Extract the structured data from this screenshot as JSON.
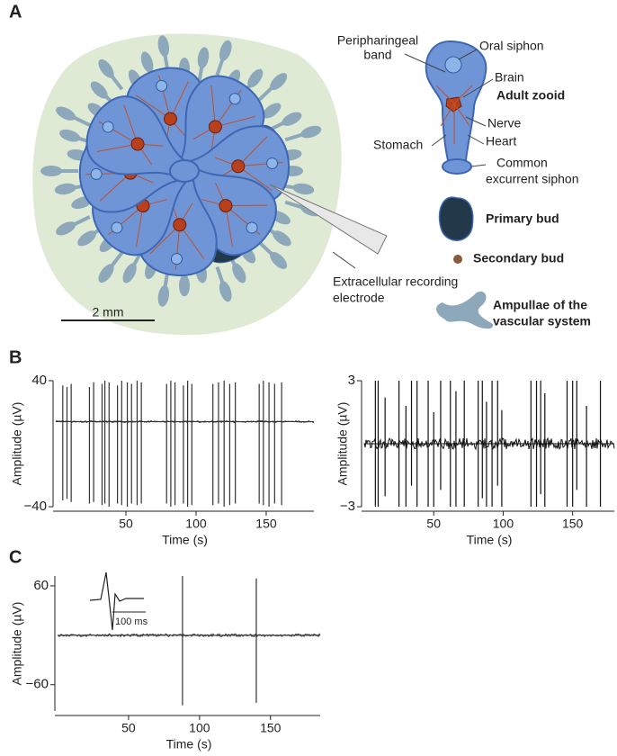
{
  "panel_labels": [
    "A",
    "B",
    "C"
  ],
  "colony": {
    "scale_bar": "2 mm",
    "electrode_label": [
      "Extracellular recording",
      "electrode"
    ]
  },
  "zooid_labels": {
    "peripharingeal_band": [
      "Peripharingeal",
      "band"
    ],
    "oral_siphon": "Oral siphon",
    "brain": "Brain",
    "adult_zooid": "Adult zooid",
    "nerve": "Nerve",
    "stomach": "Stomach",
    "heart": "Heart",
    "common_excurrent_siphon": [
      "Common",
      "excurrent siphon"
    ]
  },
  "legend": {
    "primary_bud": "Primary bud",
    "secondary_bud": "Secondary bud",
    "ampullae": [
      "Ampullae of the",
      "vascular system"
    ]
  },
  "chart_data": [
    {
      "type": "spikes",
      "x_label": "Time (s)",
      "y_label": "Amplitude (µV)",
      "xlim": [
        0,
        184
      ],
      "xticks": [
        50,
        100,
        150
      ],
      "ylim": [
        -40,
        40
      ],
      "yticks": [
        {
          "value": -40,
          "label": "−40"
        },
        40
      ],
      "baseline": 14,
      "color": "#333333",
      "x": [
        5,
        8,
        11,
        24,
        27,
        33,
        35,
        38,
        44,
        47,
        51,
        54,
        58,
        61,
        79,
        82,
        85,
        91,
        94,
        97,
        112,
        116,
        120,
        124,
        128,
        145,
        148,
        152,
        156,
        161
      ],
      "high": [
        37,
        36,
        38,
        36,
        39,
        38,
        40,
        39,
        37,
        40,
        39,
        38,
        40,
        39,
        38,
        40,
        39,
        37,
        40,
        38,
        38,
        39,
        40,
        38,
        39,
        38,
        40,
        39,
        38,
        39
      ],
      "low": [
        -36,
        -35,
        -37,
        -38,
        -37,
        -39,
        -38,
        -40,
        -38,
        -39,
        -40,
        -38,
        -39,
        -38,
        -38,
        -40,
        -39,
        -38,
        -40,
        -39,
        -39,
        -38,
        -40,
        -39,
        -38,
        -38,
        -39,
        -40,
        -38,
        -39
      ]
    },
    {
      "type": "spikes",
      "x_label": "Time (s)",
      "y_label": "Amplitude (µV)",
      "xlim": [
        0,
        180
      ],
      "xticks": [
        50,
        100,
        150
      ],
      "ylim": [
        -3,
        3
      ],
      "yticks": [
        {
          "value": -3,
          "label": "−3"
        },
        3
      ],
      "baseline": 0,
      "color": "#111111",
      "x": [
        8,
        10,
        15,
        25,
        30,
        34,
        38,
        46,
        50,
        55,
        62,
        66,
        72,
        82,
        85,
        88,
        92,
        96,
        99,
        120,
        124,
        127,
        130,
        146,
        150,
        153,
        160,
        170
      ],
      "high": [
        3,
        3,
        2.2,
        3,
        1.8,
        3,
        3,
        3,
        1.5,
        3,
        3,
        2.5,
        3,
        3,
        3,
        2,
        3,
        3,
        1.6,
        3,
        3,
        3,
        2.4,
        3,
        3,
        3,
        1.8,
        3
      ],
      "low": [
        -3,
        -3,
        -2.5,
        -3,
        -3,
        -2,
        -3,
        -3,
        -3,
        -2.2,
        -3,
        -3,
        -3,
        -3,
        -2.6,
        -3,
        -3,
        -2,
        -3,
        -3,
        -3,
        -2.4,
        -3,
        -3,
        -3,
        -2.2,
        -3,
        -3
      ]
    },
    {
      "type": "spikes",
      "x_label": "Time (s)",
      "y_label": "Amplitude (µV)",
      "xlim": [
        0,
        185
      ],
      "xticks": [
        50,
        100,
        150
      ],
      "ylim": [
        -92,
        72
      ],
      "yticks": [
        {
          "value": -60,
          "label": "−60"
        },
        60
      ],
      "baseline": 0,
      "color": "#333333",
      "x": [
        88,
        140
      ],
      "high": [
        72,
        69
      ],
      "low": [
        -85,
        -82
      ],
      "inset_scale": "100 ms"
    }
  ]
}
